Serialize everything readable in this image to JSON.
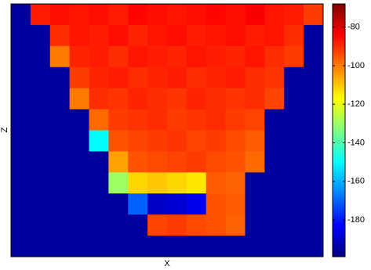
{
  "chart_data": {
    "type": "heatmap",
    "x_label": "X",
    "y_label": "Z",
    "colormap": "jet",
    "clim": [
      -199,
      -68
    ],
    "cticks": [
      -80,
      -100,
      -120,
      -140,
      -160,
      -180
    ],
    "z": [
      [
        -195,
        -88,
        -86,
        -87,
        -86,
        -88,
        -85,
        -86,
        -87,
        -86,
        -85,
        -86,
        -84,
        -87,
        -88,
        -92
      ],
      [
        -195,
        -195,
        -90,
        -87,
        -88,
        -86,
        -89,
        -87,
        -86,
        -88,
        -87,
        -86,
        -88,
        -87,
        -90,
        -195
      ],
      [
        -195,
        -195,
        -100,
        -89,
        -88,
        -90,
        -87,
        -88,
        -89,
        -87,
        -88,
        -89,
        -87,
        -90,
        -92,
        -195
      ],
      [
        -195,
        -195,
        -195,
        -92,
        -89,
        -88,
        -90,
        -89,
        -88,
        -90,
        -89,
        -88,
        -90,
        -91,
        -195,
        -195
      ],
      [
        -195,
        -195,
        -195,
        -100,
        -90,
        -91,
        -89,
        -90,
        -91,
        -89,
        -90,
        -91,
        -90,
        -93,
        -195,
        -195
      ],
      [
        -195,
        -195,
        -195,
        -195,
        -98,
        -92,
        -91,
        -90,
        -92,
        -91,
        -90,
        -92,
        -93,
        -195,
        -195,
        -195
      ],
      [
        -195,
        -195,
        -195,
        -195,
        -150,
        -95,
        -93,
        -92,
        -91,
        -93,
        -92,
        -94,
        -96,
        -195,
        -195,
        -195
      ],
      [
        -195,
        -195,
        -195,
        -195,
        -195,
        -105,
        -95,
        -94,
        -93,
        -92,
        -94,
        -95,
        -98,
        -195,
        -195,
        -195
      ],
      [
        -195,
        -195,
        -195,
        -195,
        -195,
        -130,
        -112,
        -110,
        -112,
        -114,
        -96,
        -97,
        -195,
        -195,
        -195,
        -195
      ],
      [
        -195,
        -195,
        -195,
        -195,
        -195,
        -195,
        -170,
        -190,
        -188,
        -185,
        -95,
        -96,
        -195,
        -195,
        -195,
        -195
      ],
      [
        -195,
        -195,
        -195,
        -195,
        -195,
        -195,
        -195,
        -93,
        -92,
        -94,
        -95,
        -97,
        -195,
        -195,
        -195,
        -195
      ],
      [
        -195,
        -195,
        -195,
        -195,
        -195,
        -195,
        -195,
        -195,
        -195,
        -195,
        -195,
        -195,
        -195,
        -195,
        -195,
        -195
      ]
    ]
  }
}
